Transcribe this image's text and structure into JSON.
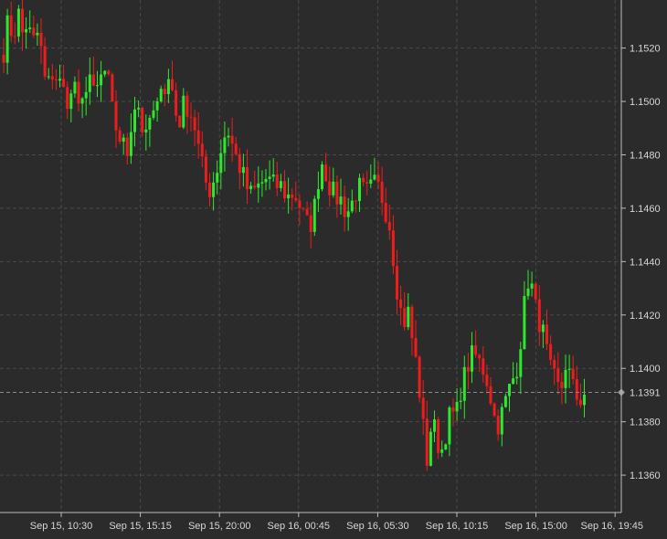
{
  "colors": {
    "background": "#2b2b2b",
    "grid": "#4a4a4a",
    "axis": "#bdbdbd",
    "text": "#d6d6d6",
    "up": "#2ee82e",
    "down": "#ee1c1c",
    "current_line": "#8a8a8a",
    "current_marker": "#9a9a9a"
  },
  "chart_data": {
    "type": "candlestick",
    "title": "",
    "xlabel": "",
    "ylabel": "",
    "ylim": [
      1.1346,
      1.1538
    ],
    "grid": true,
    "y_ticks": [
      "1.1520",
      "1.1500",
      "1.1480",
      "1.1460",
      "1.1440",
      "1.1420",
      "1.1400",
      "1.1380",
      "1.1360"
    ],
    "x_ticks": [
      "Sep 15, 10:30",
      "Sep 15, 15:15",
      "Sep 15, 20:00",
      "Sep 16, 00:45",
      "Sep 16, 05:30",
      "Sep 16, 10:15",
      "Sep 16, 15:00",
      "Sep 16, 19:45"
    ],
    "current_price": "1.1391",
    "ohlc_path": [
      1.1519,
      1.1531,
      1.1523,
      1.1534,
      1.1525,
      1.153,
      1.1521,
      1.1526,
      1.1518,
      1.1503,
      1.1511,
      1.1509,
      1.1506,
      1.1502,
      1.15,
      1.1508,
      1.1491,
      1.1505,
      1.1511,
      1.1501,
      1.1506,
      1.1512,
      1.1507,
      1.1494,
      1.1488,
      1.1484,
      1.1481,
      1.1495,
      1.1502,
      1.1491,
      1.1485,
      1.1497,
      1.1492,
      1.1509,
      1.1504,
      1.151,
      1.1496,
      1.1493,
      1.15,
      1.1497,
      1.1492,
      1.1482,
      1.1473,
      1.1466,
      1.147,
      1.1476,
      1.1485,
      1.149,
      1.1484,
      1.1478,
      1.1474,
      1.1468,
      1.1465,
      1.1467,
      1.1469,
      1.1471,
      1.147,
      1.1468,
      1.1469,
      1.1466,
      1.1464,
      1.1466,
      1.1462,
      1.1457,
      1.1453,
      1.1456,
      1.147,
      1.1478,
      1.1471,
      1.1466,
      1.1464,
      1.1463,
      1.1458,
      1.1461,
      1.1466,
      1.1468,
      1.1465,
      1.1467,
      1.1469,
      1.1467,
      1.1461,
      1.1455,
      1.144,
      1.1425,
      1.1417,
      1.1421,
      1.1409,
      1.1398,
      1.138,
      1.1365,
      1.1382,
      1.1373,
      1.1369,
      1.1377,
      1.1384,
      1.1381,
      1.1392,
      1.1398,
      1.1404,
      1.1405,
      1.1402,
      1.1399,
      1.1393,
      1.1382,
      1.1379,
      1.1385,
      1.1391,
      1.1396,
      1.1402,
      1.1416,
      1.1434,
      1.143,
      1.142,
      1.1416,
      1.1407,
      1.1398,
      1.1395,
      1.139,
      1.1402,
      1.1397,
      1.139,
      1.1388,
      1.1391
    ]
  }
}
